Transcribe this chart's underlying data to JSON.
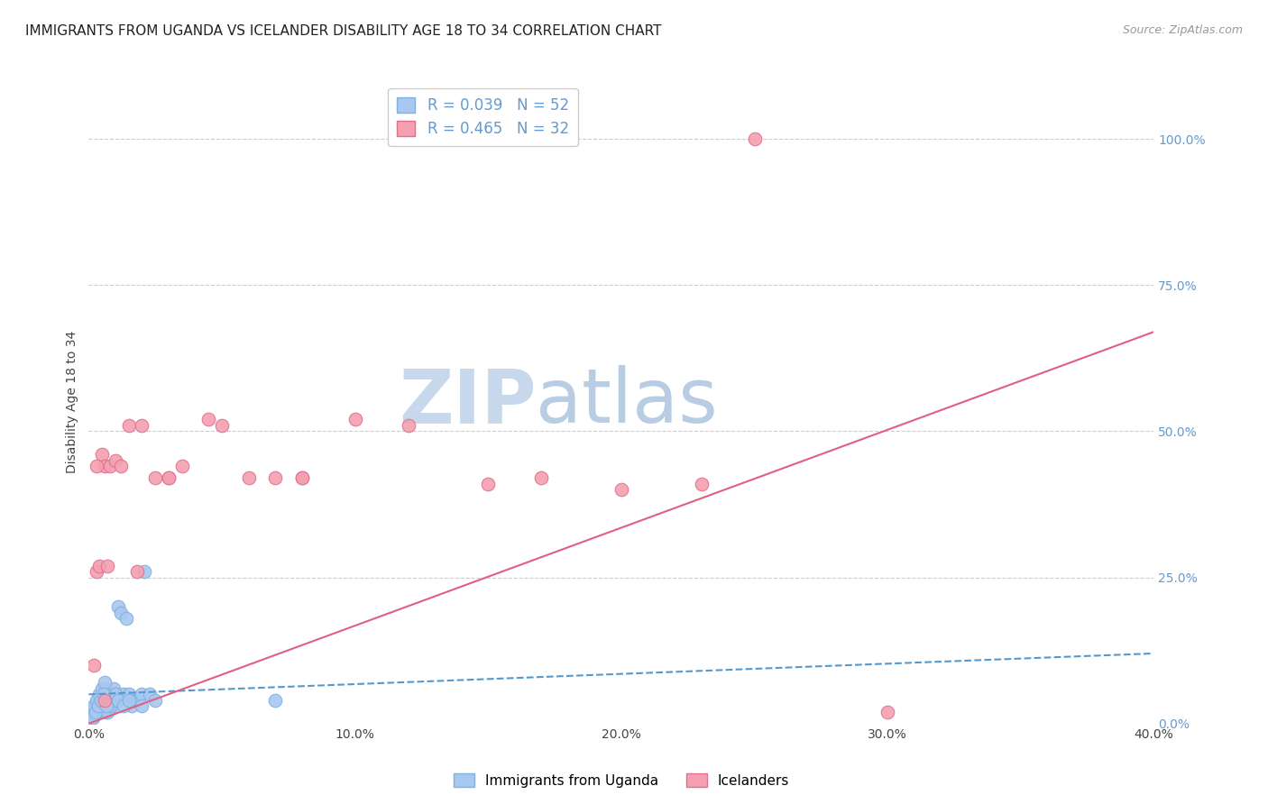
{
  "title": "IMMIGRANTS FROM UGANDA VS ICELANDER DISABILITY AGE 18 TO 34 CORRELATION CHART",
  "source": "Source: ZipAtlas.com",
  "ylabel": "Disability Age 18 to 34",
  "right_ytick_labels": [
    "0.0%",
    "25.0%",
    "50.0%",
    "75.0%",
    "100.0%"
  ],
  "right_ytick_values": [
    0,
    25,
    50,
    75,
    100
  ],
  "xlim": [
    0,
    40
  ],
  "ylim": [
    0,
    110
  ],
  "xtick_labels": [
    "0.0%",
    "10.0%",
    "20.0%",
    "30.0%",
    "40.0%"
  ],
  "xtick_values": [
    0,
    10,
    20,
    30,
    40
  ],
  "legend_entries": [
    {
      "label": "R = 0.039   N = 52",
      "color": "#a8c8f0"
    },
    {
      "label": "R = 0.465   N = 32",
      "color": "#f4a0b0"
    }
  ],
  "series1_label": "Immigrants from Uganda",
  "series2_label": "Icelanders",
  "color1": "#a8c8f0",
  "color2": "#f4a0b0",
  "color1_edge": "#80b0e0",
  "color2_edge": "#e07090",
  "trend1_color": "#5599cc",
  "trend2_color": "#e06080",
  "watermark_zip": "ZIP",
  "watermark_atlas": "atlas",
  "watermark_color_zip": "#c8d8ec",
  "watermark_color_atlas": "#b8cce4",
  "title_fontsize": 11,
  "axis_label_fontsize": 10,
  "tick_fontsize": 10,
  "right_tick_color": "#6699cc",
  "source_color": "#999999",
  "background_color": "#ffffff",
  "grid_color": "#cccccc",
  "blue_scatter_x": [
    0.15,
    0.2,
    0.25,
    0.3,
    0.35,
    0.4,
    0.45,
    0.5,
    0.55,
    0.6,
    0.65,
    0.7,
    0.75,
    0.8,
    0.85,
    0.9,
    0.95,
    1.0,
    1.1,
    1.2,
    1.3,
    1.4,
    1.5,
    1.6,
    1.7,
    1.8,
    2.0,
    2.1,
    2.3,
    2.5,
    0.1,
    0.1,
    0.2,
    0.3,
    0.4,
    0.5,
    0.6,
    0.7,
    0.8,
    0.9,
    1.0,
    1.1,
    1.3,
    1.5,
    2.0,
    7.0,
    0.15,
    0.25,
    0.35,
    0.45,
    0.55,
    0.65
  ],
  "blue_scatter_y": [
    1,
    2,
    3,
    2,
    4,
    3,
    5,
    4,
    6,
    3,
    2,
    4,
    3,
    5,
    4,
    3,
    6,
    5,
    20,
    19,
    5,
    18,
    5,
    3,
    4,
    4,
    5,
    26,
    5,
    4,
    1,
    2,
    3,
    4,
    5,
    6,
    7,
    2,
    3,
    4,
    5,
    4,
    3,
    4,
    3,
    4,
    1,
    2,
    3,
    4,
    5,
    3
  ],
  "pink_scatter_x": [
    0.2,
    0.3,
    0.5,
    0.6,
    0.8,
    1.0,
    1.5,
    2.0,
    3.0,
    3.5,
    4.5,
    5.0,
    7.0,
    8.0,
    10.0,
    12.0,
    15.0,
    17.0,
    20.0,
    23.0,
    25.0,
    0.4,
    0.7,
    1.2,
    1.8,
    2.5,
    3.0,
    6.0,
    8.0,
    30.0,
    0.3,
    0.6
  ],
  "pink_scatter_y": [
    10,
    26,
    46,
    44,
    44,
    45,
    51,
    51,
    42,
    44,
    52,
    51,
    42,
    42,
    52,
    51,
    41,
    42,
    40,
    41,
    100,
    27,
    27,
    44,
    26,
    42,
    42,
    42,
    42,
    2,
    44,
    4
  ]
}
